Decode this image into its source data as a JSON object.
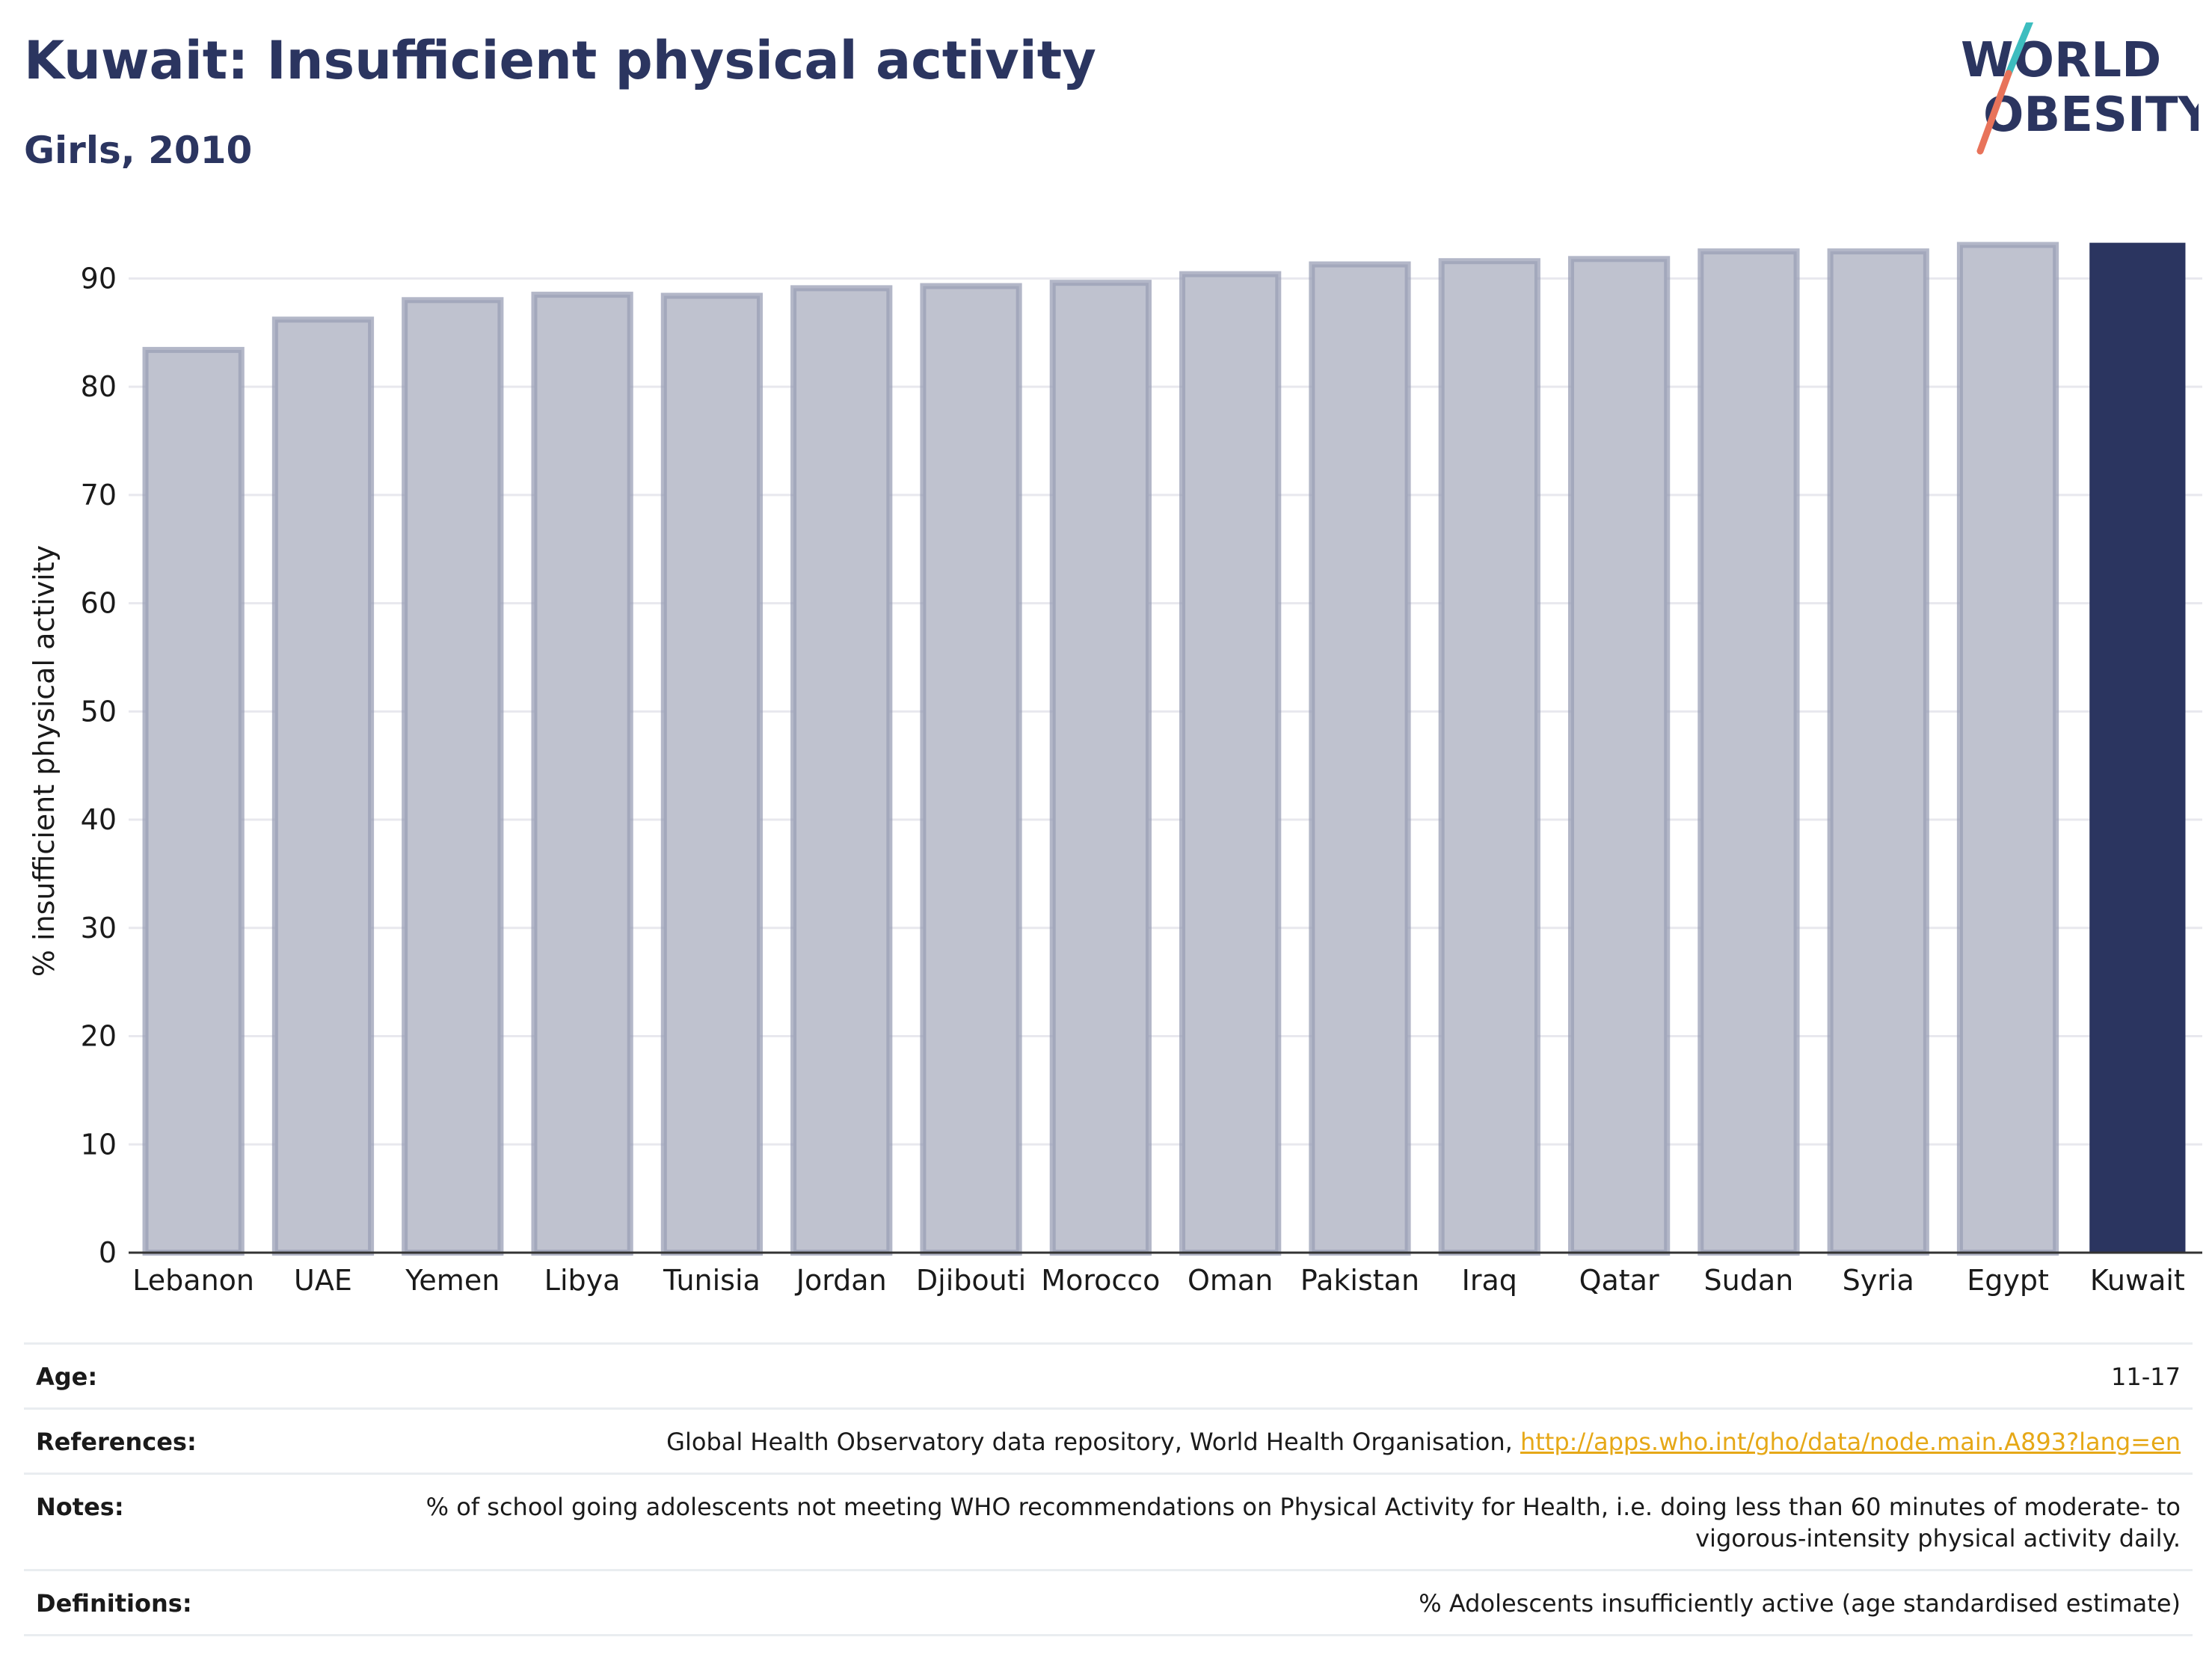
{
  "header": {
    "title": "Kuwait: Insufficient physical activity",
    "subtitle": "Girls, 2010"
  },
  "logo": {
    "line1": "WORLD",
    "line2": "OBESITY",
    "colors": {
      "text": "#2b3560",
      "slash_top": "#3dbdbf",
      "slash_bottom": "#e8735a"
    }
  },
  "chart_data": {
    "type": "bar",
    "categories": [
      "Lebanon",
      "UAE",
      "Yemen",
      "Libya",
      "Tunisia",
      "Jordan",
      "Djibouti",
      "Morocco",
      "Oman",
      "Pakistan",
      "Iraq",
      "Qatar",
      "Sudan",
      "Syria",
      "Egypt",
      "Kuwait"
    ],
    "values": [
      83.4,
      86.2,
      88.0,
      88.5,
      88.4,
      89.1,
      89.3,
      89.6,
      90.4,
      91.3,
      91.6,
      91.8,
      92.5,
      92.5,
      93.1,
      93.3
    ],
    "highlight": "Kuwait",
    "title": "",
    "xlabel": "",
    "ylabel": "% insufficient physical activity",
    "ylim": [
      0,
      95
    ],
    "yticks": [
      0,
      10,
      20,
      30,
      40,
      50,
      60,
      70,
      80,
      90
    ],
    "grid": true,
    "colors": {
      "bar": "#bfc2cf",
      "bar_edge": "#9a9fb6",
      "highlight": "#2b3560",
      "grid": "#e8e8ee",
      "axis": "#333333"
    }
  },
  "info": {
    "age_label": "Age:",
    "age_value": "11-17",
    "references_label": "References:",
    "references_text": "Global Health Observatory data repository, World Health Organisation, ",
    "references_link": "http://apps.who.int/gho/data/node.main.A893?lang=en",
    "notes_label": "Notes:",
    "notes_value": "% of school going adolescents not meeting WHO recommendations on Physical Activity for Health, i.e. doing less than 60 minutes of moderate- to vigorous-intensity physical activity daily.",
    "definitions_label": "Definitions:",
    "definitions_value": "% Adolescents insufficiently active (age standardised estimate)"
  }
}
